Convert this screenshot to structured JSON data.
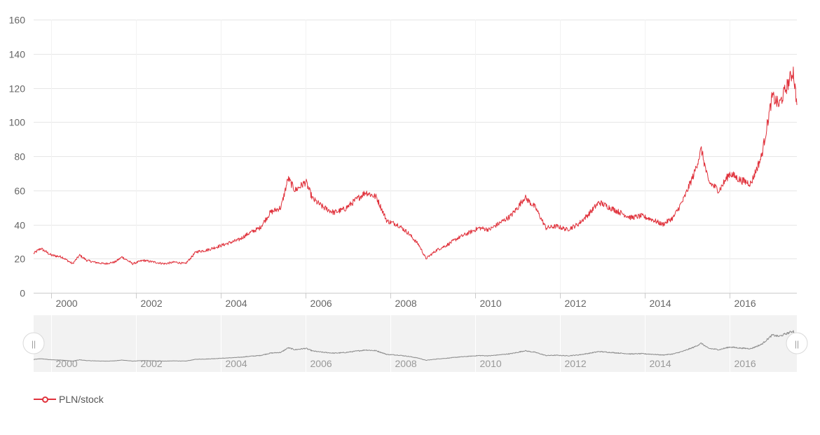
{
  "chart_data": {
    "type": "line",
    "title": "",
    "xlabel": "",
    "ylabel": "",
    "ylim": [
      0,
      160
    ],
    "xlim": [
      "1999-08-01",
      "2017-08-01"
    ],
    "y_ticks": [
      "0",
      "20",
      "40",
      "60",
      "80",
      "100",
      "120",
      "140",
      "160"
    ],
    "x_ticks": [
      "2000",
      "2002",
      "2004",
      "2006",
      "2008",
      "2010",
      "2012",
      "2014",
      "2016"
    ],
    "grid": true,
    "legend_position": "bottom-left",
    "series": [
      {
        "name": "PLN/stock",
        "color": "#e0323c",
        "x": [
          "1999-08-01",
          "1999-10-01",
          "2000-01-01",
          "2000-04-01",
          "2000-07-01",
          "2000-09-01",
          "2000-11-01",
          "2001-01-01",
          "2001-04-01",
          "2001-07-01",
          "2001-09-01",
          "2001-12-01",
          "2002-03-01",
          "2002-06-01",
          "2002-09-01",
          "2002-12-01",
          "2003-03-01",
          "2003-06-01",
          "2003-09-01",
          "2003-12-01",
          "2004-03-01",
          "2004-06-01",
          "2004-09-01",
          "2004-12-01",
          "2005-03-01",
          "2005-06-01",
          "2005-08-01",
          "2005-10-01",
          "2006-01-01",
          "2006-03-01",
          "2006-06-01",
          "2006-09-01",
          "2006-12-01",
          "2007-03-01",
          "2007-06-01",
          "2007-09-01",
          "2007-12-01",
          "2008-03-01",
          "2008-06-01",
          "2008-09-01",
          "2008-11-01",
          "2009-02-01",
          "2009-05-01",
          "2009-08-01",
          "2009-11-01",
          "2010-02-01",
          "2010-05-01",
          "2010-08-01",
          "2010-11-01",
          "2011-01-01",
          "2011-03-01",
          "2011-06-01",
          "2011-09-01",
          "2011-12-01",
          "2012-03-01",
          "2012-06-01",
          "2012-09-01",
          "2012-12-01",
          "2013-03-01",
          "2013-06-01",
          "2013-09-01",
          "2013-12-01",
          "2014-03-01",
          "2014-06-01",
          "2014-09-01",
          "2014-12-01",
          "2015-03-01",
          "2015-05-01",
          "2015-07-01",
          "2015-10-01",
          "2016-01-01",
          "2016-04-01",
          "2016-07-01",
          "2016-10-01",
          "2017-01-01",
          "2017-03-01",
          "2017-05-01",
          "2017-07-01",
          "2017-08-01"
        ],
        "values": [
          23,
          26,
          22,
          21,
          17,
          22,
          19,
          18,
          17,
          18,
          21,
          17,
          19,
          18,
          17,
          18,
          17,
          24,
          25,
          27,
          29,
          31,
          35,
          38,
          47,
          50,
          67,
          60,
          65,
          55,
          50,
          47,
          49,
          54,
          59,
          56,
          42,
          40,
          35,
          28,
          20,
          25,
          28,
          32,
          35,
          38,
          37,
          41,
          45,
          50,
          56,
          50,
          38,
          39,
          37,
          40,
          46,
          53,
          50,
          47,
          44,
          45,
          43,
          40,
          44,
          55,
          70,
          84,
          65,
          60,
          70,
          66,
          64,
          80,
          115,
          110,
          120,
          130,
          110
        ]
      }
    ]
  },
  "navigator": {
    "x_ticks": [
      "2000",
      "2002",
      "2004",
      "2006",
      "2008",
      "2010",
      "2012",
      "2014",
      "2016"
    ],
    "handle_glyph": "||"
  }
}
